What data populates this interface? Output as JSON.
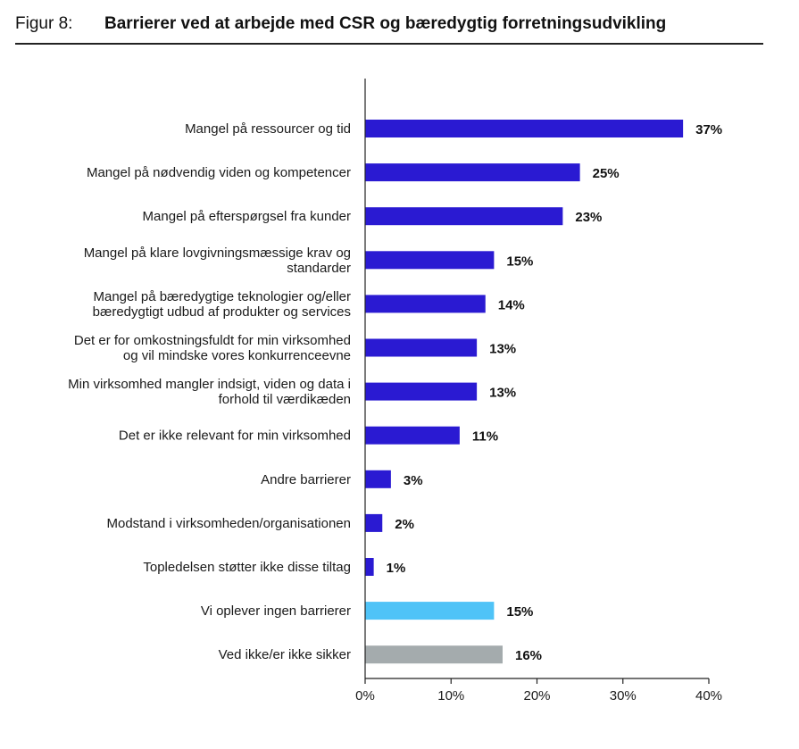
{
  "header": {
    "figure_label": "Figur 8:",
    "title": "Barrierer ved at arbejde med CSR og bæredygtig forretningsudvikling"
  },
  "chart_data": {
    "type": "bar",
    "orientation": "horizontal",
    "title": "Barrierer ved at arbejde med CSR og bæredygtig forretningsudvikling",
    "categories": [
      [
        "Mangel på ressourcer og tid"
      ],
      [
        "Mangel på nødvendig viden og kompetencer"
      ],
      [
        "Mangel på efterspørgsel fra kunder"
      ],
      [
        "Mangel på klare lovgivningsmæssige krav og",
        "standarder"
      ],
      [
        "Mangel på bæredygtige teknologier og/eller",
        "bæredygtigt udbud af produkter og services"
      ],
      [
        "Det er for omkostningsfuldt for min virksomhed",
        "og vil mindske vores konkurrenceevne"
      ],
      [
        "Min virksomhed mangler indsigt, viden og data i",
        "forhold til værdikæden"
      ],
      [
        "Det er ikke relevant for min virksomhed"
      ],
      [
        "Andre barrierer"
      ],
      [
        "Modstand i virksomheden/organisationen"
      ],
      [
        "Topledelsen støtter ikke disse tiltag"
      ],
      [
        "Vi oplever ingen barrierer"
      ],
      [
        "Ved ikke/er ikke sikker"
      ]
    ],
    "values": [
      37,
      25,
      23,
      15,
      14,
      13,
      13,
      11,
      3,
      2,
      1,
      15,
      16
    ],
    "value_labels": [
      "37%",
      "25%",
      "23%",
      "15%",
      "14%",
      "13%",
      "13%",
      "11%",
      "3%",
      "2%",
      "1%",
      "15%",
      "16%"
    ],
    "bar_colors": [
      "#2a1ad2",
      "#2a1ad2",
      "#2a1ad2",
      "#2a1ad2",
      "#2a1ad2",
      "#2a1ad2",
      "#2a1ad2",
      "#2a1ad2",
      "#2a1ad2",
      "#2a1ad2",
      "#2a1ad2",
      "#4fc3f7",
      "#a4abad"
    ],
    "xlim": [
      0,
      40
    ],
    "xticks": [
      0,
      10,
      20,
      30,
      40
    ],
    "xtick_labels": [
      "0%",
      "10%",
      "20%",
      "30%",
      "40%"
    ],
    "grid": false,
    "legend": "none"
  }
}
